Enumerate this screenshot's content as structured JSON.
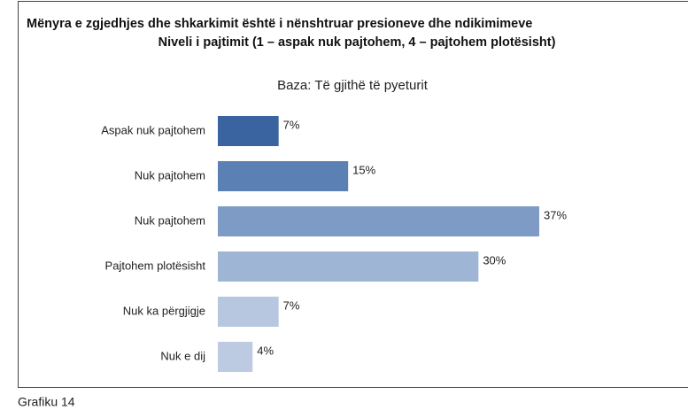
{
  "chart_data": {
    "type": "barh",
    "title": [
      "Mënyra e zgjedhjes dhe shkarkimit është i nënshtruar  presioneve dhe ndikimimeve",
      "Niveli i pajtimit (1 – aspak nuk pajtohem, 4 – pajtohem plotësisht)"
    ],
    "subtitle": "Baza: Të gjithë të pyeturit",
    "caption": "Grafiku 14",
    "categories": [
      "Aspak nuk pajtohem",
      "Nuk pajtohem",
      "Nuk pajtohem",
      "Pajtohem plotësisht",
      "Nuk ka përgjigje",
      "Nuk e dij"
    ],
    "values": [
      7,
      15,
      37,
      30,
      7,
      4
    ],
    "value_labels": [
      "7%",
      "15%",
      "37%",
      "30%",
      "7%",
      "4%"
    ],
    "colors": [
      "#3a64a0",
      "#5a80b4",
      "#7e9bc6",
      "#9fb5d6",
      "#b7c7e0",
      "#bccbe2"
    ]
  }
}
